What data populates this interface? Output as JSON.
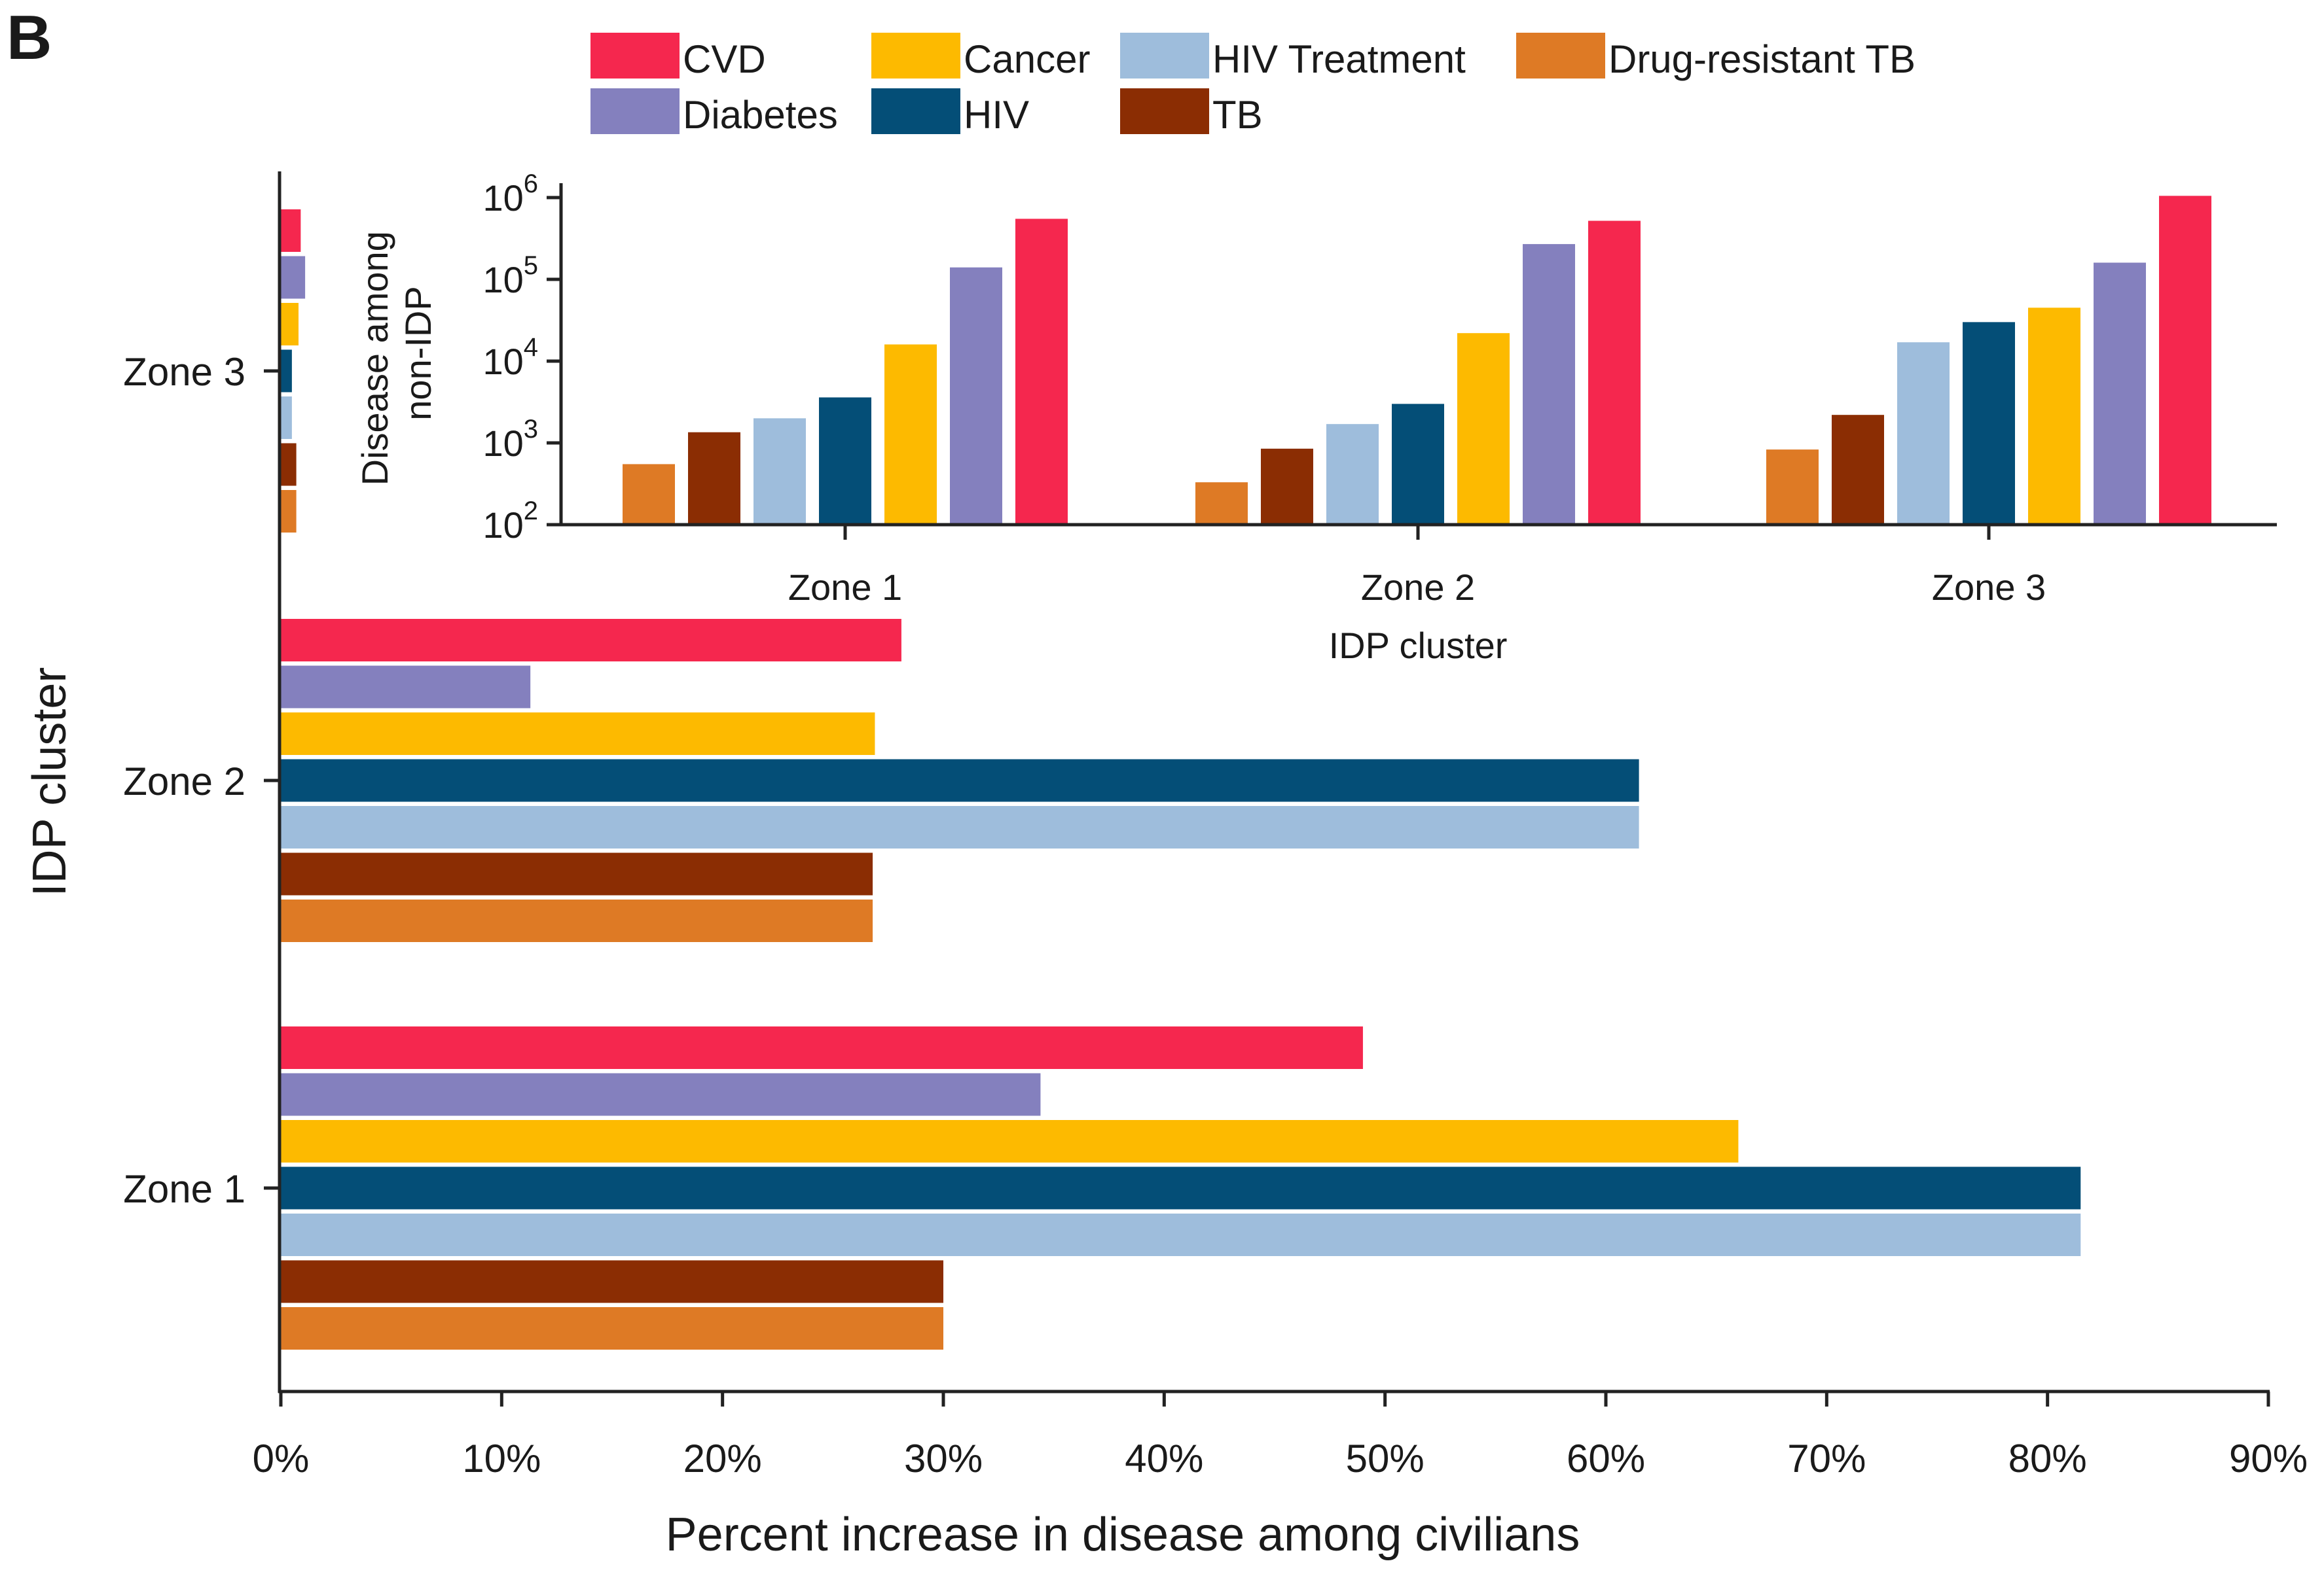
{
  "panel_label": "B",
  "legend": [
    {
      "name": "CVD",
      "color": "#F5274E"
    },
    {
      "name": "Diabetes",
      "color": "#8480BE"
    },
    {
      "name": "Cancer",
      "color": "#FDBA00"
    },
    {
      "name": "HIV",
      "color": "#044E77"
    },
    {
      "name": "HIV Treatment",
      "color": "#9EBDDC"
    },
    {
      "name": "TB",
      "color": "#8B2D03"
    },
    {
      "name": "Drug-resistant TB",
      "color": "#DE7A25"
    }
  ],
  "chart_data": [
    {
      "type": "bar",
      "orientation": "horizontal",
      "title": "",
      "xlabel": "Percent increase in disease among civilians",
      "ylabel": "IDP cluster",
      "categories": [
        "Zone 3",
        "Zone 2",
        "Zone 1"
      ],
      "xlim": [
        0,
        90
      ],
      "x_ticks": [
        "0%",
        "10%",
        "20%",
        "30%",
        "40%",
        "50%",
        "60%",
        "70%",
        "80%",
        "90%"
      ],
      "grid": false,
      "series": [
        {
          "name": "CVD",
          "color": "#F5274E",
          "values": [
            0.9,
            28.1,
            49.0
          ]
        },
        {
          "name": "Diabetes",
          "color": "#8480BE",
          "values": [
            1.1,
            11.3,
            34.4
          ]
        },
        {
          "name": "Cancer",
          "color": "#FDBA00",
          "values": [
            0.8,
            26.9,
            66.0
          ]
        },
        {
          "name": "HIV",
          "color": "#044E77",
          "values": [
            0.5,
            61.5,
            81.5
          ]
        },
        {
          "name": "HIV Treatment",
          "color": "#9EBDDC",
          "values": [
            0.5,
            61.5,
            81.5
          ]
        },
        {
          "name": "TB",
          "color": "#8B2D03",
          "values": [
            0.7,
            26.8,
            30.0
          ]
        },
        {
          "name": "Drug-resistant TB",
          "color": "#DE7A25",
          "values": [
            0.7,
            26.8,
            30.0
          ]
        }
      ]
    },
    {
      "type": "bar",
      "orientation": "vertical",
      "title": "",
      "xlabel": "IDP cluster",
      "ylabel": "Disease among non-IDP",
      "ylabel_lines": [
        "Disease among",
        "non-IDP"
      ],
      "yscale": "log",
      "ylim": [
        100,
        1000000
      ],
      "y_ticks": [
        {
          "base": "10",
          "exp": "2"
        },
        {
          "base": "10",
          "exp": "3"
        },
        {
          "base": "10",
          "exp": "4"
        },
        {
          "base": "10",
          "exp": "5"
        },
        {
          "base": "10",
          "exp": "6"
        }
      ],
      "categories": [
        "Zone 1",
        "Zone 2",
        "Zone 3"
      ],
      "grid": false,
      "series": [
        {
          "name": "Drug-resistant TB",
          "color": "#DE7A25",
          "values": [
            550,
            330,
            830
          ]
        },
        {
          "name": "TB",
          "color": "#8B2D03",
          "values": [
            1350,
            850,
            2200
          ]
        },
        {
          "name": "HIV Treatment",
          "color": "#9EBDDC",
          "values": [
            2000,
            1700,
            17000
          ]
        },
        {
          "name": "HIV",
          "color": "#044E77",
          "values": [
            3600,
            3000,
            30000
          ]
        },
        {
          "name": "Cancer",
          "color": "#FDBA00",
          "values": [
            16000,
            22000,
            45000
          ]
        },
        {
          "name": "Diabetes",
          "color": "#8480BE",
          "values": [
            140000,
            270000,
            160000
          ]
        },
        {
          "name": "CVD",
          "color": "#F5274E",
          "values": [
            550000,
            520000,
            1050000
          ]
        }
      ]
    }
  ]
}
